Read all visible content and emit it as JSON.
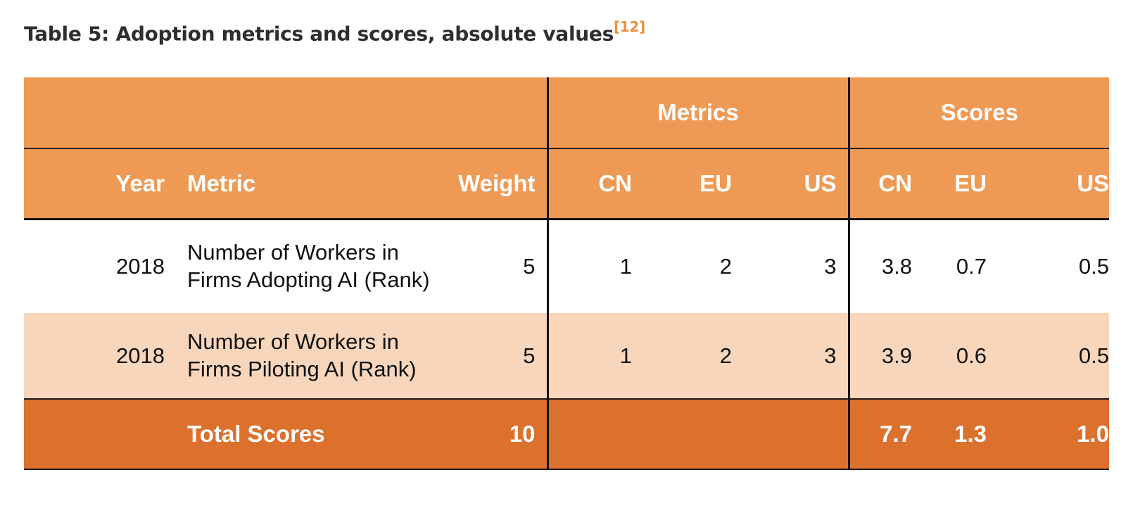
{
  "caption": {
    "text": "Table 5: Adoption metrics and scores, absolute values",
    "ref": "[12]"
  },
  "table": {
    "groups": {
      "metrics": "Metrics",
      "scores": "Scores"
    },
    "columns": {
      "year": "Year",
      "metric": "Metric",
      "weight": "Weight",
      "metrics_cn": "CN",
      "metrics_eu": "EU",
      "metrics_us": "US",
      "scores_cn": "CN",
      "scores_eu": "EU",
      "scores_us": "US"
    },
    "rows": [
      {
        "year": "2018",
        "metric_line1": "Number of Workers in",
        "metric_line2": "Firms Adopting AI (Rank)",
        "weight": "5",
        "metrics_cn": "1",
        "metrics_eu": "2",
        "metrics_us": "3",
        "scores_cn": "3.8",
        "scores_eu": "0.7",
        "scores_us": "0.5"
      },
      {
        "year": "2018",
        "metric_line1": "Number of Workers in",
        "metric_line2": "Firms Piloting AI (Rank)",
        "weight": "5",
        "metrics_cn": "1",
        "metrics_eu": "2",
        "metrics_us": "3",
        "scores_cn": "3.9",
        "scores_eu": "0.6",
        "scores_us": "0.5"
      }
    ],
    "total": {
      "label": "Total Scores",
      "weight": "10",
      "scores_cn": "7.7",
      "scores_eu": "1.3",
      "scores_us": "1.0"
    }
  },
  "colors": {
    "header": "#ef9a54",
    "total": "#dc712d",
    "alt_row": "#f7d6bc",
    "ref": "#e8913f"
  }
}
